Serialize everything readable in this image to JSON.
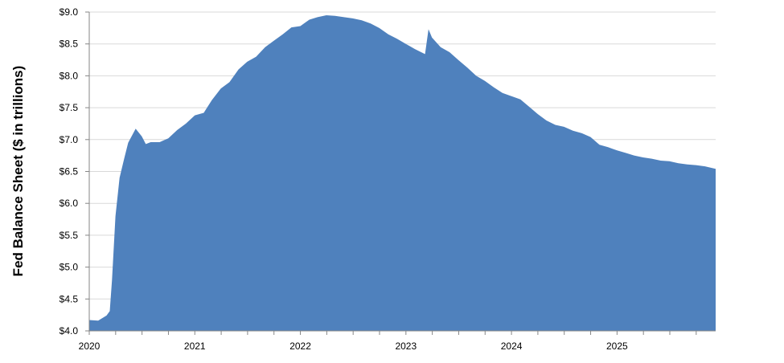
{
  "chart_data": {
    "type": "area",
    "title": "",
    "xlabel": "",
    "ylabel": "Fed Balance Sheet ($ in trillions)",
    "ylim": [
      4.0,
      9.0
    ],
    "xlim": [
      "2020-01-01",
      "2025-12-08"
    ],
    "yticks": [
      "$4.0",
      "$4.5",
      "$5.0",
      "$5.5",
      "$6.0",
      "$6.5",
      "$7.0",
      "$7.5",
      "$8.0",
      "$8.5",
      "$9.0"
    ],
    "xticks": [
      "2020",
      "2021",
      "2022",
      "2023",
      "2024",
      "2025"
    ],
    "grid": true,
    "fill_color": "#4f81bd",
    "x": [
      "2020-01-01",
      "2020-02-01",
      "2020-03-01",
      "2020-03-12",
      "2020-03-20",
      "2020-04-01",
      "2020-04-15",
      "2020-05-01",
      "2020-05-15",
      "2020-06-10",
      "2020-07-01",
      "2020-07-15",
      "2020-08-01",
      "2020-09-01",
      "2020-10-01",
      "2020-11-01",
      "2020-12-01",
      "2021-01-01",
      "2021-02-01",
      "2021-03-01",
      "2021-04-01",
      "2021-05-01",
      "2021-06-01",
      "2021-07-01",
      "2021-08-01",
      "2021-09-01",
      "2021-10-01",
      "2021-11-01",
      "2021-12-01",
      "2022-01-01",
      "2022-02-01",
      "2022-03-01",
      "2022-04-01",
      "2022-05-01",
      "2022-06-01",
      "2022-07-01",
      "2022-08-01",
      "2022-09-01",
      "2022-10-01",
      "2022-11-01",
      "2022-12-01",
      "2023-01-01",
      "2023-02-01",
      "2023-03-08",
      "2023-03-20",
      "2023-04-01",
      "2023-05-01",
      "2023-06-01",
      "2023-07-01",
      "2023-08-01",
      "2023-09-01",
      "2023-10-01",
      "2023-11-01",
      "2023-12-01",
      "2024-01-01",
      "2024-02-01",
      "2024-03-01",
      "2024-04-01",
      "2024-05-01",
      "2024-06-01",
      "2024-07-01",
      "2024-08-01",
      "2024-09-01",
      "2024-10-01",
      "2024-11-01",
      "2024-12-01",
      "2025-01-01",
      "2025-02-01",
      "2025-03-01",
      "2025-04-01",
      "2025-05-01",
      "2025-06-01",
      "2025-07-01",
      "2025-08-01",
      "2025-09-01",
      "2025-10-01",
      "2025-11-01",
      "2025-12-08"
    ],
    "values": [
      4.17,
      4.16,
      4.24,
      4.31,
      4.8,
      5.8,
      6.4,
      6.7,
      6.95,
      7.17,
      7.05,
      6.93,
      6.96,
      6.96,
      7.02,
      7.15,
      7.25,
      7.38,
      7.42,
      7.62,
      7.8,
      7.9,
      8.1,
      8.22,
      8.3,
      8.45,
      8.55,
      8.65,
      8.76,
      8.78,
      8.88,
      8.92,
      8.95,
      8.94,
      8.92,
      8.9,
      8.87,
      8.82,
      8.75,
      8.65,
      8.58,
      8.5,
      8.42,
      8.34,
      8.73,
      8.6,
      8.45,
      8.37,
      8.25,
      8.13,
      8.0,
      7.92,
      7.82,
      7.73,
      7.68,
      7.63,
      7.52,
      7.4,
      7.3,
      7.23,
      7.2,
      7.14,
      7.1,
      7.04,
      6.92,
      6.88,
      6.83,
      6.79,
      6.75,
      6.72,
      6.7,
      6.67,
      6.66,
      6.63,
      6.61,
      6.6,
      6.58,
      6.54
    ]
  }
}
